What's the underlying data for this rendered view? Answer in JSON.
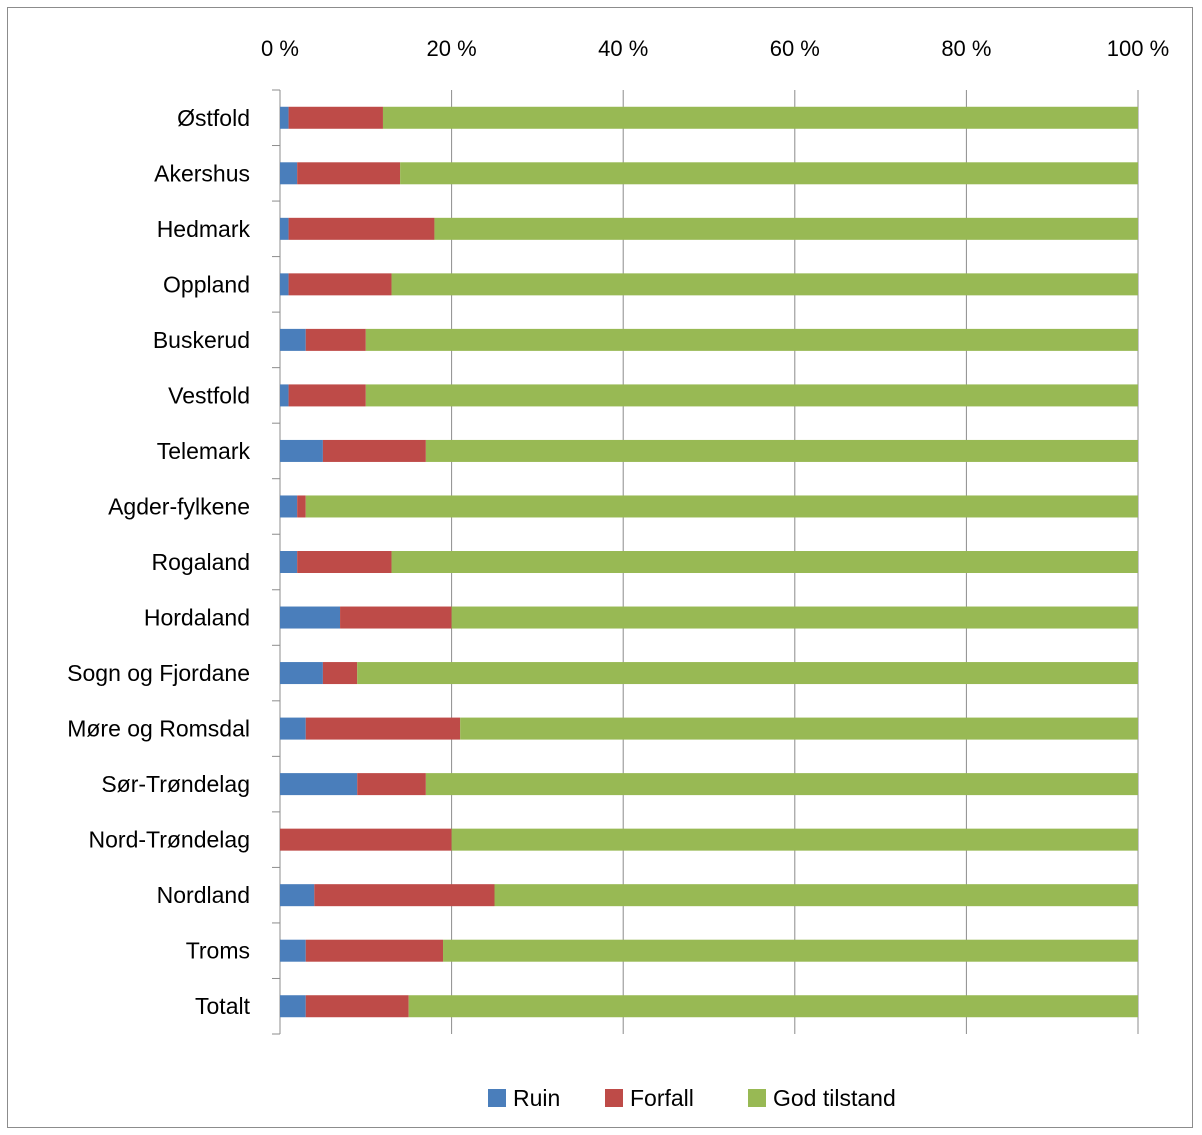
{
  "chart_data": {
    "type": "bar",
    "orientation": "horizontal",
    "stacked": "percent",
    "title": "",
    "xlabel": "",
    "ylabel": "",
    "xlim": [
      0,
      100
    ],
    "x_ticks": [
      "0 %",
      "20 %",
      "40 %",
      "60 %",
      "80 %",
      "100 %"
    ],
    "x_axis_position": "top",
    "grid": "vertical",
    "legend_position": "bottom",
    "categories": [
      "Østfold",
      "Akershus",
      "Hedmark",
      "Oppland",
      "Buskerud",
      "Vestfold",
      "Telemark",
      "Agder-fylkene",
      "Rogaland",
      "Hordaland",
      "Sogn og Fjordane",
      "Møre og Romsdal",
      "Sør-Trøndelag",
      "Nord-Trøndelag",
      "Nordland",
      "Troms",
      "Totalt"
    ],
    "series": [
      {
        "name": "Ruin",
        "color": "#4a7ebb",
        "values": [
          1,
          2,
          1,
          1,
          3,
          1,
          5,
          2,
          2,
          7,
          5,
          3,
          9,
          0,
          4,
          3,
          3
        ]
      },
      {
        "name": "Forfall",
        "color": "#be4b48",
        "values": [
          11,
          12,
          17,
          12,
          7,
          9,
          12,
          1,
          11,
          13,
          4,
          18,
          8,
          20,
          21,
          16,
          12
        ]
      },
      {
        "name": "God tilstand",
        "color": "#98b954",
        "values": [
          88,
          86,
          82,
          87,
          90,
          90,
          83,
          97,
          87,
          80,
          91,
          79,
          83,
          80,
          75,
          81,
          85
        ]
      }
    ]
  }
}
